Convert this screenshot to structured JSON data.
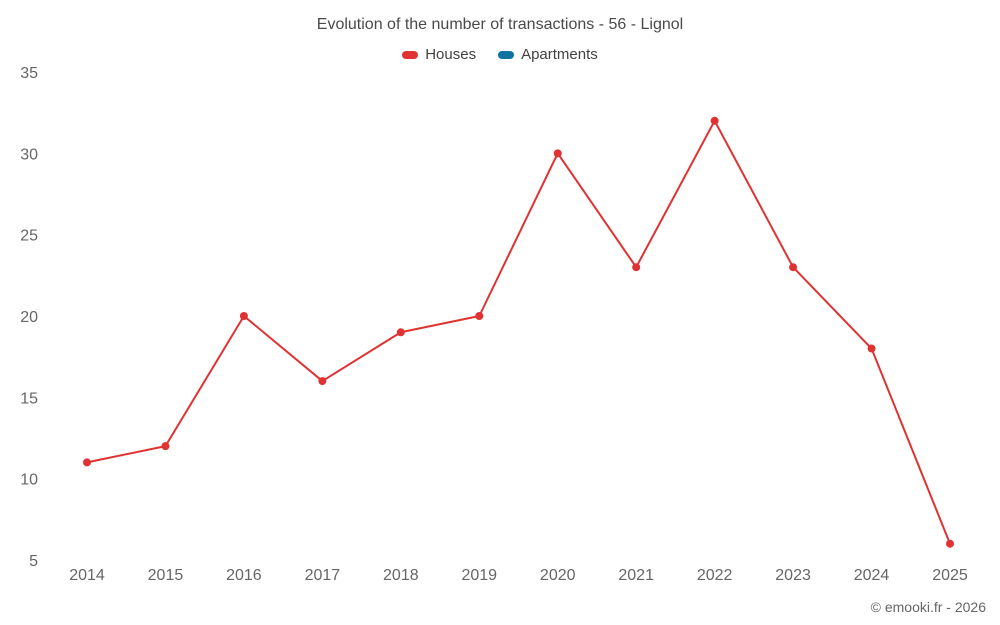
{
  "title": "Evolution of the number of transactions - 56 - Lignol",
  "legend": [
    {
      "label": "Houses",
      "color": "#e03232"
    },
    {
      "label": "Apartments",
      "color": "#0e72a3"
    }
  ],
  "footer": "© emooki.fr - 2026",
  "chart_data": {
    "type": "line",
    "title": "Evolution of the number of transactions - 56 - Lignol",
    "x": [
      2014,
      2015,
      2016,
      2017,
      2018,
      2019,
      2020,
      2021,
      2022,
      2023,
      2024,
      2025
    ],
    "series": [
      {
        "name": "Houses",
        "color": "#e03232",
        "values": [
          11,
          12,
          20,
          16,
          19,
          20,
          30,
          23,
          32,
          23,
          18,
          6
        ]
      },
      {
        "name": "Apartments",
        "color": "#0e72a3",
        "values": []
      }
    ],
    "ylim": [
      5,
      35
    ],
    "yticks": [
      5,
      10,
      15,
      20,
      25,
      30,
      35
    ],
    "xlabel": "",
    "ylabel": "",
    "grid": false,
    "legend_position": "top"
  }
}
